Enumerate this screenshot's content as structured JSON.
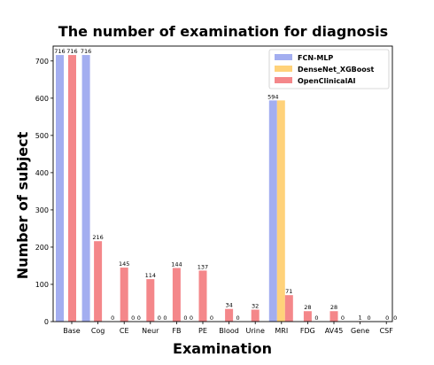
{
  "chart_data": {
    "type": "bar",
    "title": "The number of examination for diagnosis",
    "xlabel": "Examination",
    "ylabel": "Number of subject",
    "categories": [
      "Base",
      "Cog",
      "CE",
      "Neur",
      "FB",
      "PE",
      "Blood",
      "Urine",
      "MRI",
      "FDG",
      "AV45",
      "Gene",
      "CSF"
    ],
    "ylim": [
      0,
      740
    ],
    "yticks": [
      0,
      100,
      200,
      300,
      400,
      500,
      600,
      700
    ],
    "grid": false,
    "legend_position": "top-right",
    "series": [
      {
        "name": "FCN-MLP",
        "color": "#a3aef0",
        "values": [
          716,
          716,
          null,
          null,
          null,
          null,
          null,
          null,
          594,
          null,
          null,
          null,
          null
        ],
        "labels": [
          "716",
          "716",
          "",
          "",
          "",
          "",
          "",
          "",
          "594",
          "",
          "",
          "",
          ""
        ]
      },
      {
        "name": "DenseNet_XGBoost",
        "color": "#ffd27a",
        "values": [
          null,
          null,
          null,
          null,
          null,
          null,
          null,
          null,
          594,
          null,
          null,
          null,
          null
        ],
        "labels": [
          "",
          "",
          "",
          "",
          "",
          "",
          "",
          "",
          "",
          "",
          "",
          "",
          ""
        ]
      },
      {
        "name": "OpenClinicalAI",
        "color": "#f4878a",
        "values": [
          716,
          216,
          145,
          114,
          144,
          137,
          34,
          32,
          71,
          28,
          28,
          1,
          0
        ],
        "labels": [
          "716",
          "216",
          "145",
          "114",
          "144",
          "137",
          "34",
          "32",
          "71",
          "28",
          "28",
          "1",
          "0"
        ]
      }
    ],
    "zero_labels_after_red": [
      "",
      "",
      "0",
      "0",
      "0",
      "0",
      "0",
      "",
      "",
      "0",
      "0",
      "0",
      "0"
    ],
    "extra_zero_labels": [
      "",
      "",
      "0",
      "0",
      "0",
      "0",
      "",
      "",
      "",
      "",
      "",
      "",
      ""
    ]
  }
}
